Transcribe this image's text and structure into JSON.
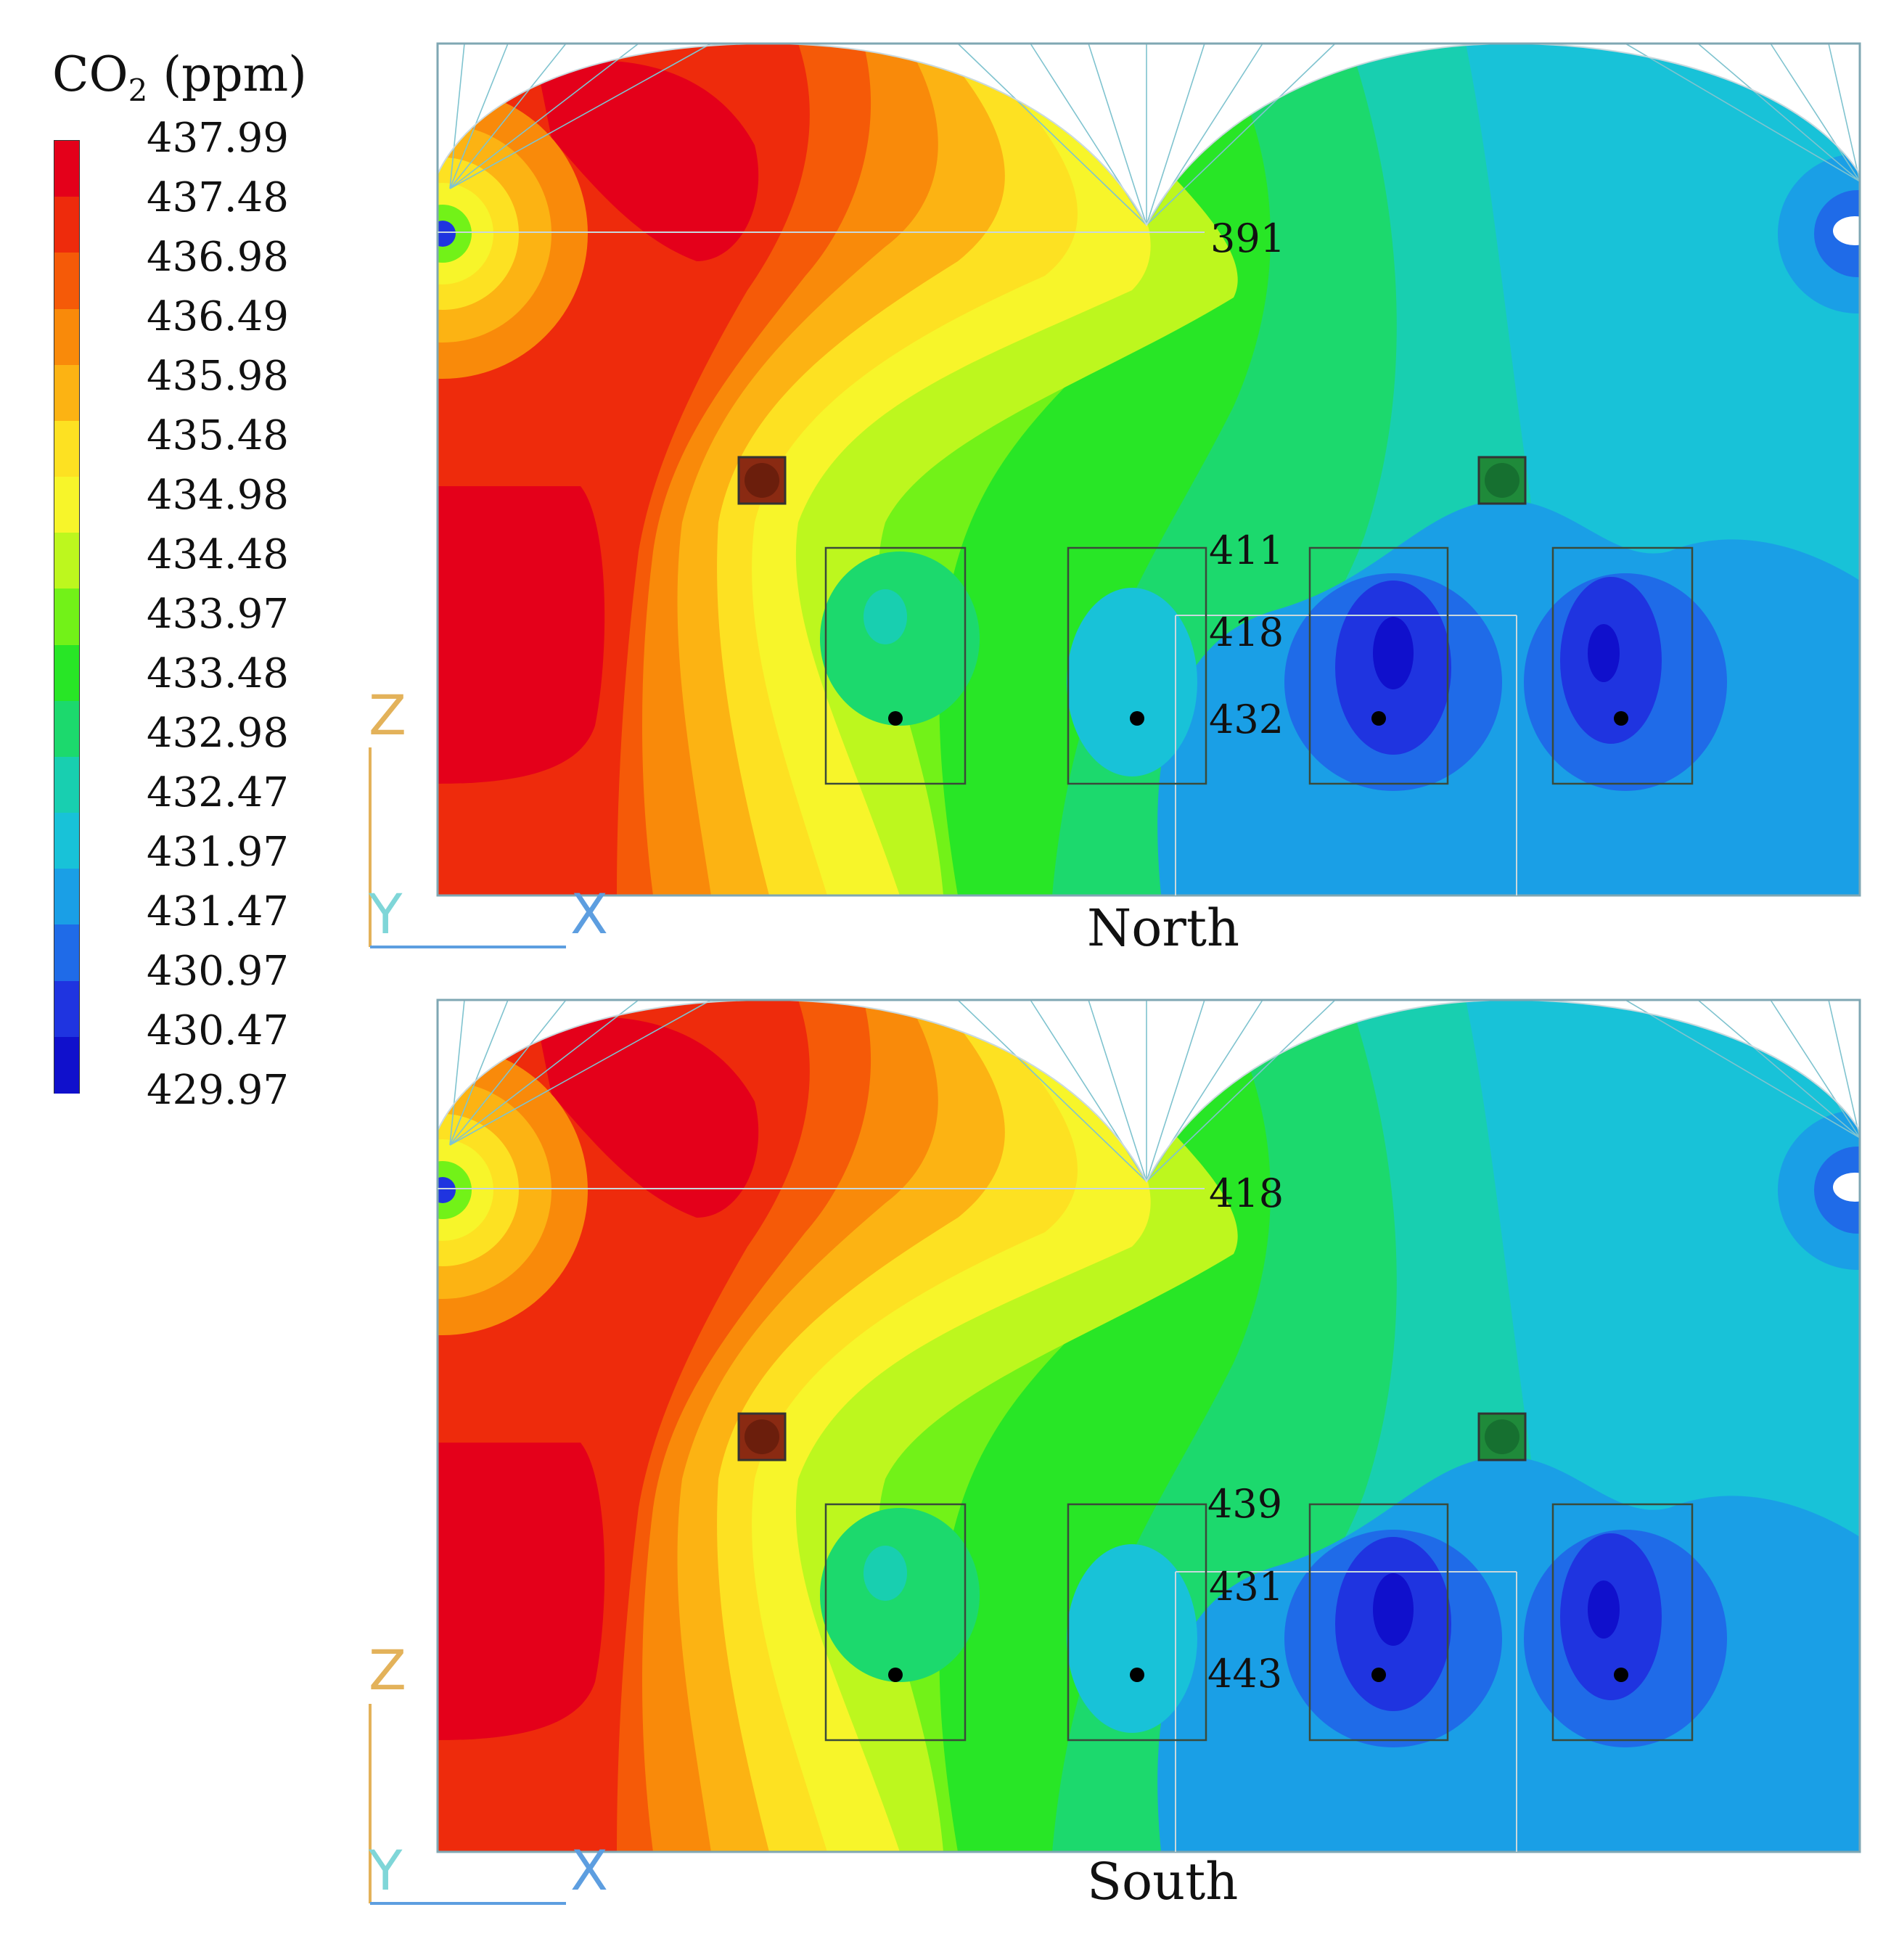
{
  "legend": {
    "title_main": "CO",
    "title_sub": "2",
    "title_unit": " (ppm)",
    "values": [
      "437.99",
      "437.48",
      "436.98",
      "436.49",
      "435.98",
      "435.48",
      "434.98",
      "434.48",
      "433.97",
      "433.48",
      "432.98",
      "432.47",
      "431.97",
      "431.47",
      "430.97",
      "430.47",
      "429.97"
    ],
    "colors": [
      "#e4001a",
      "#ee2b0c",
      "#f55a08",
      "#f98a0a",
      "#fcb313",
      "#fde122",
      "#f7f52a",
      "#bdf71e",
      "#72f218",
      "#28e626",
      "#1cd96d",
      "#18cfb0",
      "#18c2d8",
      "#1a9fe6",
      "#1f6be8",
      "#1f34e0",
      "#1010cc"
    ]
  },
  "axes": {
    "z": "Z",
    "y": "Y",
    "x": "X"
  },
  "panels": [
    {
      "caption": "North",
      "labels": [
        "391",
        "411",
        "418",
        "432"
      ]
    },
    {
      "caption": "South",
      "labels": [
        "418",
        "439",
        "431",
        "443"
      ]
    }
  ]
}
